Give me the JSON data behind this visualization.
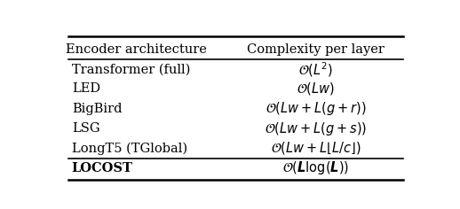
{
  "col_headers": [
    "Encoder architecture",
    "Complexity per layer"
  ],
  "rows": [
    [
      "Transformer (full)",
      "$\\mathcal{O}(L^2)$"
    ],
    [
      "LED",
      "$\\mathcal{O}(Lw)$"
    ],
    [
      "BigBird",
      "$\\mathcal{O}(Lw + L(g + r))$"
    ],
    [
      "LSG",
      "$\\mathcal{O}(Lw + L(g + s))$"
    ],
    [
      "LongT5 (TGlobal)",
      "$\\mathcal{O}(Lw + L\\lfloor L/c\\rfloor)$"
    ],
    [
      "LOCOST",
      "$\\mathcal{O}(\\boldsymbol{L}\\log(\\boldsymbol{L}))$"
    ]
  ],
  "bold_last_row": true,
  "bg_color": "#ffffff",
  "text_color": "#000000",
  "figsize": [
    5.18,
    2.36
  ],
  "dpi": 100
}
